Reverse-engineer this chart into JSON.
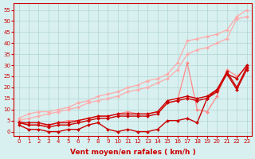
{
  "x": [
    0,
    1,
    2,
    3,
    4,
    5,
    6,
    7,
    8,
    9,
    10,
    11,
    12,
    13,
    14,
    15,
    16,
    17,
    18,
    19,
    20,
    21,
    22,
    23
  ],
  "series": [
    {
      "name": "line_light1",
      "color": "#ffaaaa",
      "linewidth": 0.9,
      "marker": "D",
      "markersize": 2.0,
      "y": [
        6,
        8,
        9,
        9,
        10,
        11,
        13,
        14,
        16,
        17,
        18,
        20,
        21,
        23,
        24,
        26,
        31,
        41,
        42,
        43,
        44,
        46,
        52,
        55
      ]
    },
    {
      "name": "line_light2",
      "color": "#ffaaaa",
      "linewidth": 0.9,
      "marker": "D",
      "markersize": 2.0,
      "y": [
        5,
        6,
        7,
        8,
        9,
        10,
        11,
        13,
        14,
        15,
        16,
        18,
        19,
        20,
        22,
        24,
        28,
        35,
        37,
        38,
        40,
        42,
        51,
        52
      ]
    },
    {
      "name": "line_pink_jagged",
      "color": "#ff8888",
      "linewidth": 0.9,
      "marker": "D",
      "markersize": 2.0,
      "y": [
        5,
        3,
        3,
        3,
        4,
        5,
        5,
        6,
        7,
        7,
        8,
        9,
        8,
        8,
        9,
        13,
        14,
        31,
        10,
        9,
        16,
        28,
        25,
        29
      ]
    },
    {
      "name": "line_dark1",
      "color": "#cc0000",
      "linewidth": 1.0,
      "marker": "D",
      "markersize": 2.0,
      "y": [
        4,
        4,
        4,
        3,
        4,
        4,
        5,
        6,
        7,
        7,
        8,
        8,
        8,
        8,
        9,
        14,
        15,
        16,
        15,
        16,
        19,
        27,
        20,
        29
      ]
    },
    {
      "name": "line_dark2",
      "color": "#cc0000",
      "linewidth": 1.0,
      "marker": "D",
      "markersize": 2.0,
      "y": [
        4,
        3,
        3,
        2,
        3,
        3,
        4,
        5,
        6,
        6,
        7,
        7,
        7,
        7,
        8,
        13,
        14,
        15,
        14,
        15,
        18,
        26,
        19,
        28
      ]
    },
    {
      "name": "line_dark3",
      "color": "#cc0000",
      "linewidth": 1.0,
      "marker": "D",
      "markersize": 2.0,
      "y": [
        3,
        1,
        1,
        0,
        0,
        1,
        1,
        3,
        4,
        1,
        0,
        1,
        0,
        0,
        1,
        5,
        5,
        6,
        4,
        15,
        19,
        26,
        24,
        30
      ]
    }
  ],
  "xlabel": "Vent moyen/en rafales ( km/h )",
  "ylim": [
    -2,
    58
  ],
  "xlim": [
    -0.5,
    23.5
  ],
  "yticks": [
    0,
    5,
    10,
    15,
    20,
    25,
    30,
    35,
    40,
    45,
    50,
    55
  ],
  "xticks": [
    0,
    1,
    2,
    3,
    4,
    5,
    6,
    7,
    8,
    9,
    10,
    11,
    12,
    13,
    14,
    15,
    16,
    17,
    18,
    19,
    20,
    21,
    22,
    23
  ],
  "background_color": "#d8f0f0",
  "grid_color": "#b0d4d4",
  "axis_color": "#cc0000",
  "label_color": "#cc0000",
  "tick_color": "#cc0000",
  "xlabel_fontsize": 6.5,
  "tick_fontsize": 5.0
}
